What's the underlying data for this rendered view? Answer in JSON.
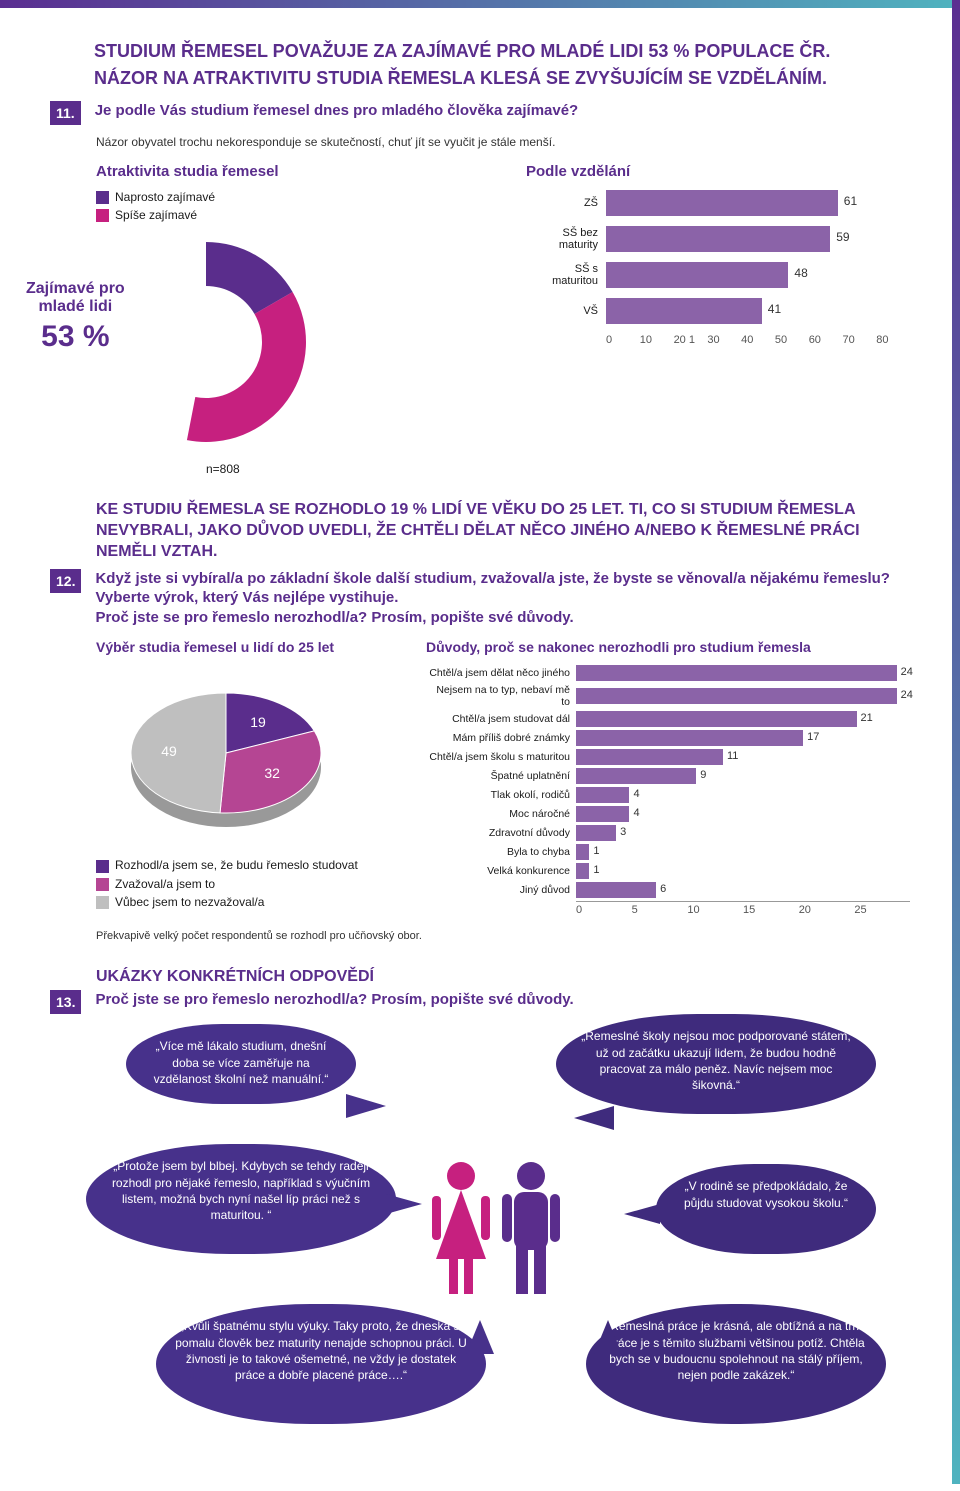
{
  "colors": {
    "brand_purple": "#5a2d8c",
    "bar_fill": "#8b63a8",
    "dark_purple": "#3a246b",
    "magenta": "#c6207f",
    "grey": "#bfbfbf",
    "pie_slice_dark": "#5a2d8c",
    "pie_slice_mag": "#b54593",
    "bubble_a": "#47318b",
    "bubble_b": "#3f2b7d"
  },
  "q11": {
    "num": "11.",
    "headline1": "STUDIUM ŘEMESEL POVAŽUJE ZA ZAJÍMAVÉ PRO MLADÉ LIDI 53 % POPULACE ČR.",
    "headline2": "NÁZOR NA ATRAKTIVITU STUDIA ŘEMESLA KLESÁ SE ZVYŠUJÍCÍM SE VZDĚLÁNÍM.",
    "question": "Je podle Vás studium řemesel dnes pro mladého člověka zajímavé?",
    "note": "Názor obyvatel trochu nekoresponduje se skutečností, chuť jít se vyučit je stále menší.",
    "left_title": "Atraktivita studia řemesel",
    "right_title": "Podle vzdělání",
    "legend": [
      {
        "color": "#5a2d8c",
        "label": "Naprosto zajímavé"
      },
      {
        "color": "#c6207f",
        "label": "Spíše zajímavé"
      }
    ],
    "donut": {
      "label1": "Zajímavé pro",
      "label2": "mladé lidi",
      "value": "53 %",
      "arc_purple_deg": 60,
      "arc_mag_deg": 131,
      "thickness": 44
    },
    "n": "n=808",
    "bars": {
      "xmax": 80,
      "xticks": [
        0,
        10,
        20,
        30,
        40,
        50,
        60,
        70,
        80
      ],
      "xtick_extra": "1",
      "rows": [
        {
          "label": "ZŠ",
          "value": 61
        },
        {
          "label": "SŠ bez maturity",
          "value": 59
        },
        {
          "label": "SŠ s maturitou",
          "value": 48
        },
        {
          "label": "VŠ",
          "value": 41
        }
      ]
    }
  },
  "q12": {
    "num": "12.",
    "headline": "KE STUDIU ŘEMESLA SE ROZHODLO 19 % LIDÍ VE VĚKU DO 25 LET. TI, CO SI STUDIUM ŘEMESLA NEVYBRALI, JAKO DŮVOD UVEDLI, ŽE CHTĚLI DĚLAT NĚCO JINÉHO A/NEBO K ŘEMESLNÉ PRÁCI NEMĚLI VZTAH.",
    "question_l1": "Když jste si vybíral/a po základní škole další studium, zvažoval/a jste, že byste se věnoval/a nějakému řemeslu? Vyberte výrok, který Vás nejlépe vystihuje.",
    "question_l2": "Proč jste se pro řemeslo nerozhodl/a? Prosím, popište své důvody.",
    "pie_title": "Výběr studia řemesel u lidí do 25 let",
    "pie": {
      "slices": [
        {
          "label": "Rozhodl/a jsem se, že budu řemeslo studovat",
          "value": 19,
          "color": "#5a2d8c"
        },
        {
          "label": "Zvažoval/a jsem to",
          "value": 32,
          "color": "#b54593"
        },
        {
          "label": "Vůbec jsem to nezvažoval/a",
          "value": 49,
          "color": "#bfbfbf"
        }
      ]
    },
    "reasons_title": "Důvody, proč se nakonec nerozhodli pro studium řemesla",
    "reasons": {
      "xmax": 25,
      "xticks": [
        0,
        5,
        10,
        15,
        20,
        25
      ],
      "rows": [
        {
          "label": "Chtěl/a jsem dělat něco jiného",
          "value": 24
        },
        {
          "label": "Nejsem na to typ, nebaví mě to",
          "value": 24
        },
        {
          "label": "Chtěl/a jsem studovat dál",
          "value": 21
        },
        {
          "label": "Mám příliš dobré známky",
          "value": 17
        },
        {
          "label": "Chtěl/a jsem školu s maturitou",
          "value": 11
        },
        {
          "label": "Špatné uplatnění",
          "value": 9
        },
        {
          "label": "Tlak okolí, rodičů",
          "value": 4
        },
        {
          "label": "Moc náročné",
          "value": 4
        },
        {
          "label": "Zdravotní důvody",
          "value": 3
        },
        {
          "label": "Byla to chyba",
          "value": 1
        },
        {
          "label": "Velká konkurence",
          "value": 1
        },
        {
          "label": "Jiný důvod",
          "value": 6
        }
      ]
    },
    "caption": "Překvapivě velký počet respondentů se rozhodl pro učňovský obor."
  },
  "q13": {
    "num": "13.",
    "section_title": "UKÁZKY KONKRÉTNÍCH ODPOVĚDÍ",
    "question": "Proč jste se pro řemeslo nerozhodl/a? Prosím, popište své důvody.",
    "quotes": [
      "„Více mě lákalo studium, dnešní doba se více zaměřuje na vzdělanost školní než manuální.“",
      "„Řemeslné školy nejsou moc podporované státem, už od začátku ukazují lidem, že budou hodně pracovat za málo peněz. Navíc nejsem moc šikovná.“",
      "„Protože jsem byl blbej. Kdybych se tehdy raději rozhodl pro nějaké řemeslo, například s výučním listem, možná bych nyní našel líp práci než s maturitou. “",
      "„V rodině se předpokládalo, že půjdu studovat vysokou školu.“",
      "„Kvůli špatnému stylu výuky. Taky proto, že dneska si pomalu člověk bez maturity nenajde schopnou práci. U živnosti je to takové ošemetné, ne vždy je dostatek práce a dobře placené práce….“",
      "„Řemeslná práce je krásná, ale obtížná a na trhu práce je s těmito službami většinou potíž. Chtěla bych se v budoucnu spolehnout na stálý příjem, nejen podle zakázek.“"
    ]
  }
}
